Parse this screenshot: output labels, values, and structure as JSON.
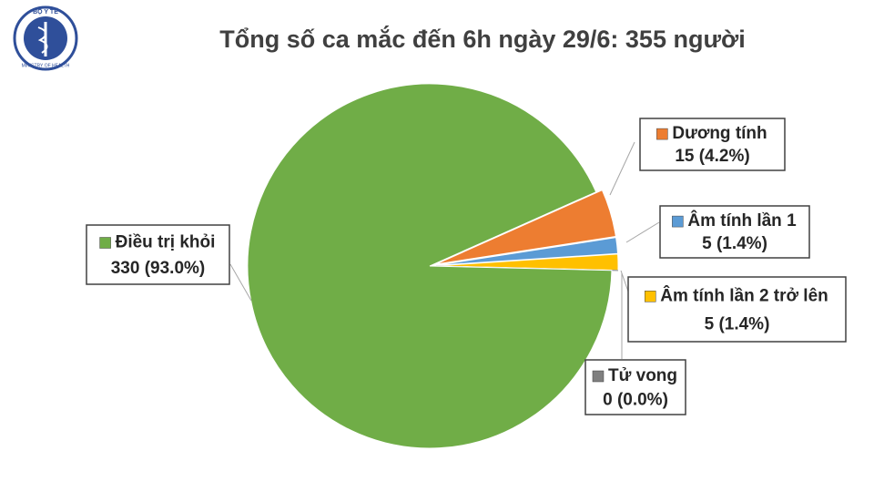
{
  "logo": {
    "top": "BỘ Y TẾ",
    "bottom": "MINISTRY OF HEALTH"
  },
  "chart_data": {
    "type": "pie",
    "title": "Tổng số ca mắc đến 6h ngày 29/6: 355 người",
    "categories": [
      "Dương tính",
      "Âm tính lần 1",
      "Âm tính lần 2 trở lên",
      "Tử vong",
      "Điều trị khỏi"
    ],
    "values": [
      15,
      5,
      5,
      0,
      330
    ],
    "value_labels": [
      "15 (4.2%)",
      "5 (1.4%)",
      "5 (1.4%)",
      "0 (0.0%)",
      "330 (93.0%)"
    ],
    "colors": [
      "#ed7d31",
      "#5b9bd5",
      "#ffc000",
      "#7f7f7f",
      "#70ad47"
    ]
  }
}
